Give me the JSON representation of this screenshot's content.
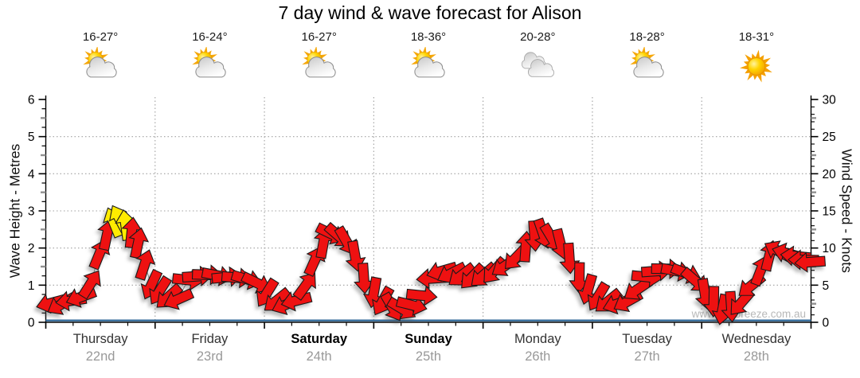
{
  "title": "7 day wind & wave forecast for Alison",
  "watermark": "www.seabreeze.com.au",
  "days": [
    {
      "name": "Thursday",
      "date": "22nd",
      "temp": "16-27°",
      "icon": "sun-cloud",
      "weekend": false
    },
    {
      "name": "Friday",
      "date": "23rd",
      "temp": "16-24°",
      "icon": "sun-cloud",
      "weekend": false
    },
    {
      "name": "Saturday",
      "date": "24th",
      "temp": "16-27°",
      "icon": "sun-cloud",
      "weekend": true
    },
    {
      "name": "Sunday",
      "date": "25th",
      "temp": "18-36°",
      "icon": "sun-cloud",
      "weekend": true
    },
    {
      "name": "Monday",
      "date": "26th",
      "temp": "20-28°",
      "icon": "clouds",
      "weekend": false
    },
    {
      "name": "Tuesday",
      "date": "27th",
      "temp": "18-28°",
      "icon": "sun-cloud",
      "weekend": false
    },
    {
      "name": "Wednesday",
      "date": "28th",
      "temp": "18-31°",
      "icon": "sun",
      "weekend": false
    }
  ],
  "left_axis": {
    "label": "Wave Height - Metres",
    "min": 0,
    "max": 6,
    "ticks": [
      0,
      1,
      2,
      3,
      4,
      5,
      6
    ]
  },
  "right_axis": {
    "label": "Wind Speed - Knots",
    "min": 0,
    "max": 30,
    "ticks": [
      0,
      5,
      10,
      15,
      20,
      25,
      30
    ]
  },
  "chart_data": {
    "type": "line",
    "categories": [
      "Thursday 22nd",
      "Friday 23rd",
      "Saturday 24th",
      "Sunday 25th",
      "Monday 26th",
      "Tuesday 27th",
      "Wednesday 28th"
    ],
    "x_range_days": [
      0,
      7
    ],
    "grid": "dotted, horizontal at 1-5 m (5-25 kn), vertical at day boundaries",
    "series": [
      {
        "name": "Wind speed & direction (arrows)",
        "units": "knots",
        "point_format": "[day_offset, knots, arrow_points_toward_deg (0=up,90=right), color r=red y=yellow]",
        "points": [
          [
            0.05,
            2.6,
            255,
            "r"
          ],
          [
            0.14,
            2.4,
            240,
            "r"
          ],
          [
            0.23,
            2.9,
            262,
            "r"
          ],
          [
            0.32,
            3.4,
            250,
            "r"
          ],
          [
            0.41,
            5.2,
            32,
            "r"
          ],
          [
            0.49,
            9.2,
            22,
            "r"
          ],
          [
            0.56,
            11.8,
            12,
            "r"
          ],
          [
            0.62,
            13.5,
            -22,
            "y"
          ],
          [
            0.675,
            13.9,
            -28,
            "y"
          ],
          [
            0.73,
            13.1,
            -8,
            "y"
          ],
          [
            0.785,
            12.1,
            6,
            "r"
          ],
          [
            0.845,
            10.7,
            12,
            "r"
          ],
          [
            0.905,
            7.8,
            18,
            "r"
          ],
          [
            0.965,
            5.0,
            205,
            "r"
          ],
          [
            1.04,
            4.2,
            212,
            "r"
          ],
          [
            1.12,
            3.4,
            228,
            "r"
          ],
          [
            1.21,
            3.1,
            246,
            "r"
          ],
          [
            1.3,
            5.7,
            96,
            "r"
          ],
          [
            1.39,
            6.2,
            86,
            "r"
          ],
          [
            1.48,
            6.4,
            92,
            "r"
          ],
          [
            1.57,
            6.3,
            101,
            "r"
          ],
          [
            1.66,
            6.1,
            84,
            "r"
          ],
          [
            1.75,
            6.0,
            95,
            "r"
          ],
          [
            1.84,
            5.8,
            106,
            "r"
          ],
          [
            1.93,
            5.3,
            116,
            "r"
          ],
          [
            2.02,
            3.9,
            212,
            "r"
          ],
          [
            2.11,
            2.9,
            231,
            "r"
          ],
          [
            2.2,
            2.4,
            247,
            "r"
          ],
          [
            2.29,
            2.9,
            256,
            "r"
          ],
          [
            2.38,
            5.0,
            36,
            "r"
          ],
          [
            2.46,
            8.3,
            24,
            "r"
          ],
          [
            2.54,
            10.7,
            10,
            "r"
          ],
          [
            2.61,
            11.9,
            116,
            "r"
          ],
          [
            2.68,
            11.6,
            131,
            "r"
          ],
          [
            2.75,
            10.9,
            150,
            "r"
          ],
          [
            2.83,
            8.9,
            170,
            "r"
          ],
          [
            2.91,
            5.9,
            176,
            "r"
          ],
          [
            3.0,
            4.0,
            190,
            "r"
          ],
          [
            3.08,
            2.8,
            209,
            "r"
          ],
          [
            3.17,
            2.0,
            150,
            "r"
          ],
          [
            3.26,
            1.8,
            121,
            "r"
          ],
          [
            3.35,
            2.3,
            104,
            "r"
          ],
          [
            3.44,
            3.6,
            96,
            "r"
          ],
          [
            3.53,
            5.9,
            266,
            "r"
          ],
          [
            3.62,
            6.9,
            254,
            "r"
          ],
          [
            3.71,
            6.6,
            243,
            "r"
          ],
          [
            3.8,
            6.3,
            233,
            "r"
          ],
          [
            3.9,
            6.1,
            224,
            "r"
          ],
          [
            4.0,
            6.3,
            229,
            "r"
          ],
          [
            4.1,
            6.9,
            221,
            "r"
          ],
          [
            4.2,
            7.6,
            236,
            "r"
          ],
          [
            4.3,
            8.7,
            224,
            "r"
          ],
          [
            4.39,
            10.2,
            4,
            "r"
          ],
          [
            4.47,
            11.6,
            176,
            "r"
          ],
          [
            4.55,
            11.9,
            161,
            "r"
          ],
          [
            4.63,
            11.3,
            149,
            "r"
          ],
          [
            4.71,
            10.5,
            166,
            "r"
          ],
          [
            4.79,
            8.6,
            176,
            "r"
          ],
          [
            4.88,
            6.0,
            181,
            "r"
          ],
          [
            4.96,
            4.4,
            196,
            "r"
          ],
          [
            5.05,
            3.4,
            211,
            "r"
          ],
          [
            5.14,
            2.8,
            231,
            "r"
          ],
          [
            5.23,
            2.5,
            251,
            "r"
          ],
          [
            5.32,
            2.8,
            241,
            "r"
          ],
          [
            5.41,
            4.4,
            236,
            "r"
          ],
          [
            5.5,
            6.1,
            96,
            "r"
          ],
          [
            5.59,
            6.9,
            86,
            "r"
          ],
          [
            5.68,
            7.2,
            91,
            "r"
          ],
          [
            5.77,
            6.9,
            101,
            "r"
          ],
          [
            5.86,
            6.6,
            111,
            "r"
          ],
          [
            5.94,
            5.6,
            131,
            "r"
          ],
          [
            6.03,
            3.8,
            171,
            "r"
          ],
          [
            6.11,
            2.8,
            181,
            "r"
          ],
          [
            6.19,
            1.7,
            191,
            "r"
          ],
          [
            6.27,
            2.1,
            176,
            "r"
          ],
          [
            6.36,
            2.6,
            221,
            "r"
          ],
          [
            6.45,
            4.9,
            231,
            "r"
          ],
          [
            6.54,
            7.0,
            21,
            "r"
          ],
          [
            6.62,
            9.0,
            14,
            "r"
          ],
          [
            6.7,
            9.6,
            299,
            "r"
          ],
          [
            6.78,
            9.3,
            286,
            "r"
          ],
          [
            6.86,
            8.9,
            276,
            "r"
          ],
          [
            6.93,
            8.4,
            271,
            "r"
          ],
          [
            6.99,
            8.1,
            266,
            "r"
          ]
        ]
      },
      {
        "name": "Wave height",
        "units": "metres",
        "shape": "flat line across whole week",
        "constant_value_m": 0.05
      }
    ]
  },
  "colors": {
    "arrow_red": "#EE1111",
    "arrow_strong_yellow": "#FFEB00",
    "arrow_outline": "#1a1a1a",
    "wave_line": "#336B9B",
    "grid": "#A0A0A0",
    "axis": "#000000",
    "trace": "#9a9a9a",
    "date_text": "#999999",
    "watermark_text": "#b8b8b8"
  }
}
